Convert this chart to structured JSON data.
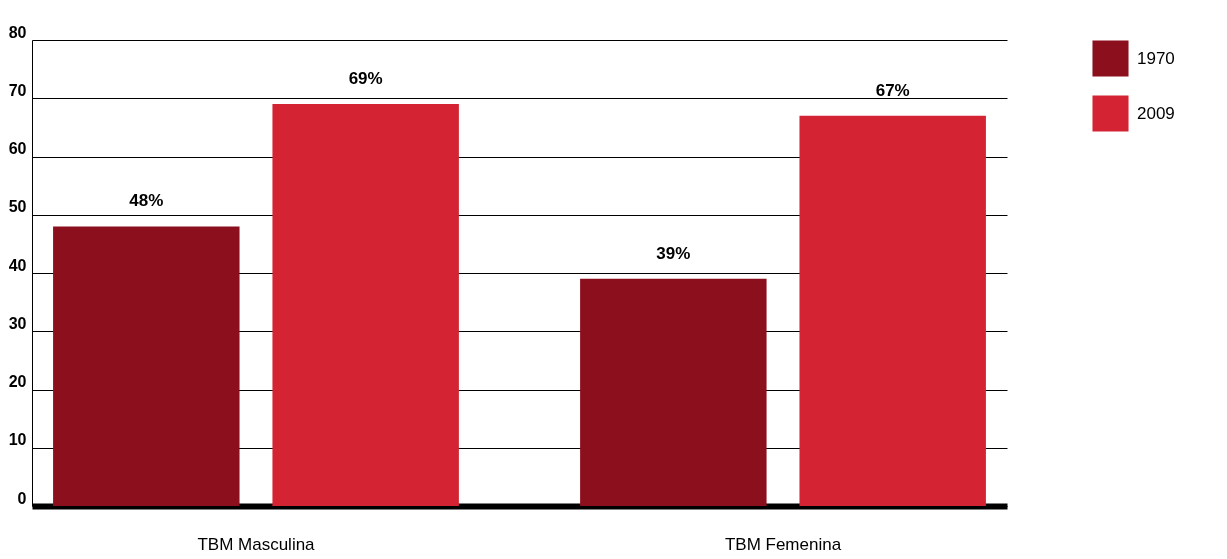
{
  "chart_data": {
    "type": "bar",
    "categories": [
      "TBM Masculina",
      "TBM Femenina"
    ],
    "series": [
      {
        "name": "1970",
        "color": "#8b0f1c",
        "values": [
          48,
          39
        ],
        "value_labels": [
          "48%",
          "39%"
        ]
      },
      {
        "name": "2009",
        "color": "#d42434",
        "values": [
          69,
          67
        ],
        "value_labels": [
          "69%",
          "67%"
        ]
      }
    ],
    "ylim": [
      0,
      80
    ],
    "yticks": [
      0,
      10,
      20,
      30,
      40,
      50,
      60,
      70,
      80
    ],
    "grid": "y",
    "legend": "right"
  }
}
